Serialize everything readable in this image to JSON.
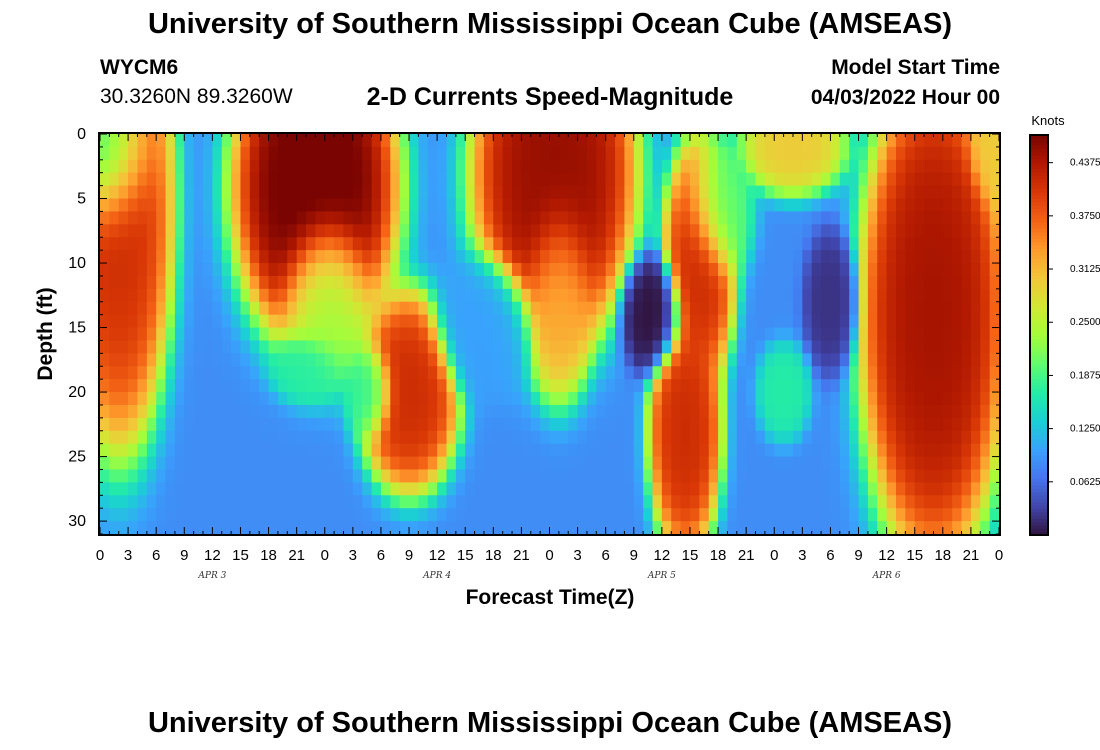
{
  "header": {
    "main_title": "University of Southern Mississippi Ocean Cube (AMSEAS)",
    "station_id": "WYCM6",
    "coordinates": "30.3260N  89.3260W",
    "model_start_label": "Model Start Time",
    "model_start_value": "04/03/2022 Hour 00"
  },
  "footer": {
    "repeat_title": "University of Southern Mississippi Ocean Cube (AMSEAS)"
  },
  "chart_data": {
    "type": "heatmap",
    "title": "2-D Currents Speed-Magnitude",
    "xlabel": "Forecast Time(Z)",
    "ylabel": "Depth (ft)",
    "x_ticks": [
      "0",
      "3",
      "6",
      "9",
      "12",
      "15",
      "18",
      "21",
      "0",
      "3",
      "6",
      "9",
      "12",
      "15",
      "18",
      "21",
      "0",
      "3",
      "6",
      "9",
      "12",
      "15",
      "18",
      "21",
      "0",
      "3",
      "6",
      "9",
      "12",
      "15",
      "18",
      "21",
      "0"
    ],
    "day_labels": [
      "APR 3",
      "APR 4",
      "APR 5",
      "APR 6"
    ],
    "x_range_hours": [
      0,
      96
    ],
    "y_ticks": [
      0,
      5,
      10,
      15,
      20,
      25,
      30
    ],
    "ylim": [
      0,
      31
    ],
    "y_inverted": true,
    "colorbar": {
      "label": "Knots",
      "ticks": [
        "0.4375",
        "0.3750",
        "0.3125",
        "0.2500",
        "0.1875",
        "0.1250",
        "0.0625"
      ],
      "range": [
        0,
        0.47
      ],
      "colors": [
        "#30123b",
        "#4145ab",
        "#4675ed",
        "#39a2fc",
        "#1bcfd4",
        "#24eca6",
        "#61fc6c",
        "#a4fc3b",
        "#d1e834",
        "#f3c63a",
        "#fe9b2d",
        "#f36315",
        "#d93806",
        "#b11901",
        "#7a0402"
      ]
    },
    "field": {
      "background": 0.085,
      "blobs": [
        {
          "t": 2.0,
          "d": 5.0,
          "st": 3.0,
          "sd": 10.0,
          "v": 0.42
        },
        {
          "t": 1.0,
          "d": 1.0,
          "st": 2.5,
          "sd": 4.0,
          "v": 0.08
        },
        {
          "t": 23.0,
          "d": 4.0,
          "st": 4.5,
          "sd": 6.5,
          "v": 0.49
        },
        {
          "t": 24.0,
          "d": 12.0,
          "st": 2.5,
          "sd": 4.0,
          "v": 0.22
        },
        {
          "t": 22.0,
          "d": 18.0,
          "st": 2.0,
          "sd": 1.5,
          "v": 0.17
        },
        {
          "t": 33.0,
          "d": 20.0,
          "st": 2.8,
          "sd": 4.0,
          "v": 0.42
        },
        {
          "t": 29.0,
          "d": 20.0,
          "st": 1.5,
          "sd": 2.0,
          "v": 0.17
        },
        {
          "t": 48.5,
          "d": 3.0,
          "st": 4.5,
          "sd": 7.0,
          "v": 0.46
        },
        {
          "t": 49.0,
          "d": 12.0,
          "st": 2.0,
          "sd": 4.5,
          "v": 0.32
        },
        {
          "t": 59.0,
          "d": 14.0,
          "st": 1.8,
          "sd": 2.5,
          "v": 0.0
        },
        {
          "t": 64.0,
          "d": 10.0,
          "st": 2.0,
          "sd": 5.0,
          "v": 0.42
        },
        {
          "t": 62.5,
          "d": 23.0,
          "st": 2.0,
          "sd": 5.0,
          "v": 0.42
        },
        {
          "t": 66.0,
          "d": 6.0,
          "st": 2.0,
          "sd": 3.0,
          "v": 0.2
        },
        {
          "t": 74.0,
          "d": 1.0,
          "st": 3.0,
          "sd": 2.0,
          "v": 0.3
        },
        {
          "t": 78.0,
          "d": 13.0,
          "st": 1.5,
          "sd": 3.0,
          "v": 0.02
        },
        {
          "t": 73.0,
          "d": 20.0,
          "st": 1.5,
          "sd": 2.0,
          "v": 0.17
        },
        {
          "t": 89.0,
          "d": 14.0,
          "st": 4.0,
          "sd": 10.0,
          "v": 0.45
        },
        {
          "t": 95.5,
          "d": 1.0,
          "st": 1.5,
          "sd": 2.5,
          "v": 0.3
        },
        {
          "t": 41.0,
          "d": 15.0,
          "st": 3.0,
          "sd": 3.0,
          "v": 0.1
        }
      ]
    }
  }
}
